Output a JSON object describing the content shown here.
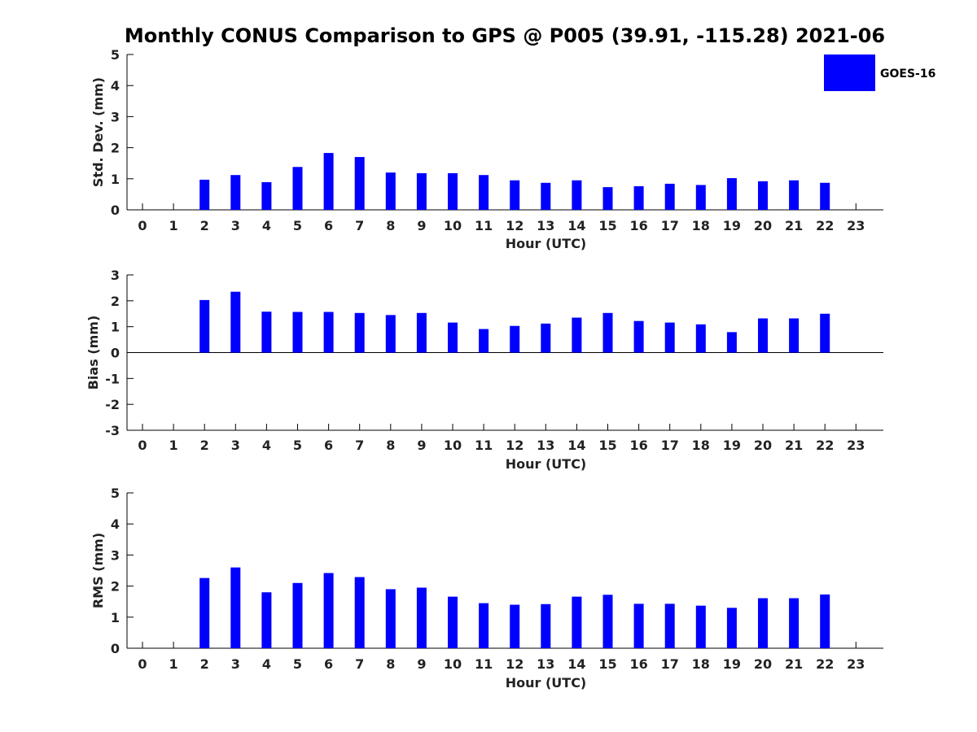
{
  "title": "Monthly CONUS Comparison to GPS @ P005 (39.91, -115.28) 2021-06",
  "legend": {
    "label": "GOES-16",
    "color": "#0000ff",
    "placement": "top-right"
  },
  "chart_data": [
    {
      "type": "bar",
      "xlabel": "Hour (UTC)",
      "ylabel": "Std. Dev. (mm)",
      "ylim": [
        0,
        5
      ],
      "yticks": [
        0,
        1,
        2,
        3,
        4,
        5
      ],
      "categories": [
        0,
        1,
        2,
        3,
        4,
        5,
        6,
        7,
        8,
        9,
        10,
        11,
        12,
        13,
        14,
        15,
        16,
        17,
        18,
        19,
        20,
        21,
        22,
        23
      ],
      "series": [
        {
          "name": "GOES-16",
          "values": [
            null,
            null,
            0.97,
            1.12,
            0.89,
            1.38,
            1.83,
            1.7,
            1.2,
            1.18,
            1.18,
            1.12,
            0.95,
            0.87,
            0.95,
            0.73,
            0.76,
            0.84,
            0.8,
            1.02,
            0.92,
            0.95,
            0.87,
            null
          ]
        }
      ]
    },
    {
      "type": "bar",
      "xlabel": "Hour (UTC)",
      "ylabel": "Bias (mm)",
      "ylim": [
        -3,
        3
      ],
      "yticks": [
        -3,
        -2,
        -1,
        0,
        1,
        2,
        3
      ],
      "categories": [
        0,
        1,
        2,
        3,
        4,
        5,
        6,
        7,
        8,
        9,
        10,
        11,
        12,
        13,
        14,
        15,
        16,
        17,
        18,
        19,
        20,
        21,
        22,
        23
      ],
      "series": [
        {
          "name": "GOES-16",
          "values": [
            null,
            null,
            2.03,
            2.35,
            1.58,
            1.57,
            1.57,
            1.53,
            1.45,
            1.53,
            1.16,
            0.91,
            1.03,
            1.12,
            1.35,
            1.53,
            1.22,
            1.16,
            1.09,
            0.79,
            1.32,
            1.32,
            1.5,
            null
          ]
        }
      ]
    },
    {
      "type": "bar",
      "xlabel": "Hour (UTC)",
      "ylabel": "RMS (mm)",
      "ylim": [
        0,
        5
      ],
      "yticks": [
        0,
        1,
        2,
        3,
        4,
        5
      ],
      "categories": [
        0,
        1,
        2,
        3,
        4,
        5,
        6,
        7,
        8,
        9,
        10,
        11,
        12,
        13,
        14,
        15,
        16,
        17,
        18,
        19,
        20,
        21,
        22,
        23
      ],
      "series": [
        {
          "name": "GOES-16",
          "values": [
            null,
            null,
            2.26,
            2.6,
            1.8,
            2.1,
            2.42,
            2.29,
            1.9,
            1.95,
            1.66,
            1.45,
            1.4,
            1.42,
            1.66,
            1.72,
            1.43,
            1.43,
            1.37,
            1.3,
            1.61,
            1.61,
            1.73,
            null
          ]
        }
      ]
    }
  ]
}
